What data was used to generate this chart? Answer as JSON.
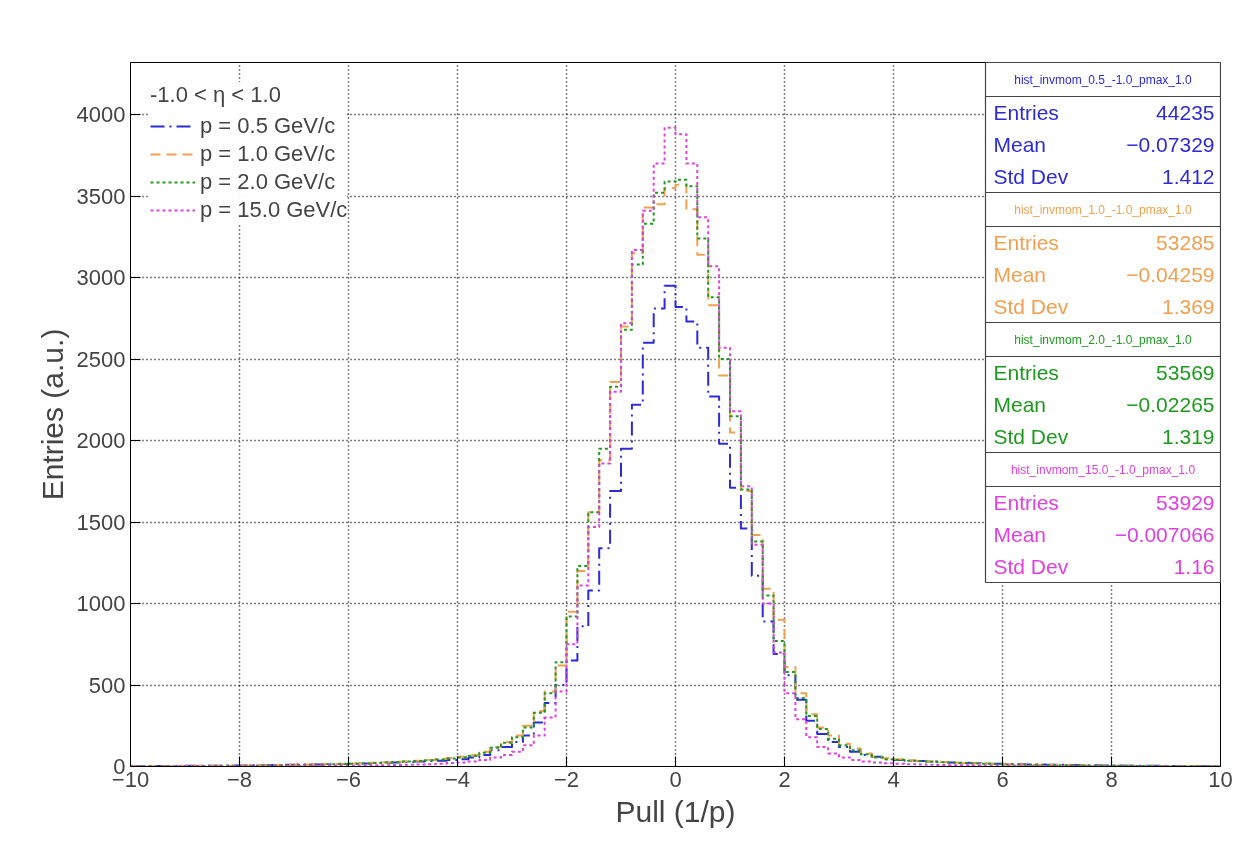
{
  "chart_data": {
    "type": "histogram",
    "xlabel": "Pull (1/p)",
    "ylabel": "Entries (a.u.)",
    "legend_title": "-1.0 < η < 1.0",
    "bins": [
      -10.0,
      -9.8,
      -9.6,
      -9.4,
      -9.2,
      -9.0,
      -8.8,
      -8.6,
      -8.4,
      -8.2,
      -8.0,
      -7.8,
      -7.6,
      -7.4,
      -7.2,
      -7.0,
      -6.8,
      -6.6,
      -6.4,
      -6.2,
      -6.0,
      -5.8,
      -5.6,
      -5.4,
      -5.2,
      -5.0,
      -4.8,
      -4.6,
      -4.4,
      -4.2,
      -4.0,
      -3.8,
      -3.6,
      -3.4,
      -3.2,
      -3.0,
      -2.8,
      -2.6,
      -2.4,
      -2.2,
      -2.0,
      -1.8,
      -1.6,
      -1.4,
      -1.2,
      -1.0,
      -0.8,
      -0.6,
      -0.4,
      -0.2,
      0.0,
      0.2,
      0.4,
      0.6,
      0.8,
      1.0,
      1.2,
      1.4,
      1.6,
      1.8,
      2.0,
      2.2,
      2.4,
      2.6,
      2.8,
      3.0,
      3.2,
      3.4,
      3.6,
      3.8,
      4.0,
      4.2,
      4.4,
      4.6,
      4.8,
      5.0,
      5.2,
      5.4,
      5.6,
      5.8,
      6.0,
      6.2,
      6.4,
      6.6,
      6.8,
      7.0,
      7.2,
      7.4,
      7.6,
      7.8,
      8.0,
      8.2,
      8.4,
      8.6,
      8.8,
      9.0,
      9.2,
      9.4,
      9.6,
      9.8,
      10.0
    ],
    "series": [
      {
        "name": "p = 0.5 GeV/c",
        "color": "#2b2bd9",
        "line_style": "dashdot",
        "values": [
          2,
          2,
          3,
          3,
          3,
          4,
          4,
          5,
          5,
          6,
          6,
          7,
          8,
          9,
          10,
          11,
          12,
          13,
          14,
          15,
          17,
          19,
          21,
          23,
          25,
          27,
          30,
          33,
          36,
          40,
          45,
          55,
          70,
          100,
          120,
          150,
          190,
          270,
          390,
          500,
          650,
          860,
          1080,
          1340,
          1690,
          1950,
          2220,
          2600,
          2810,
          2950,
          2820,
          2730,
          2570,
          2270,
          1980,
          1710,
          1460,
          1170,
          890,
          690,
          560,
          410,
          280,
          200,
          150,
          120,
          90,
          70,
          60,
          45,
          40,
          36,
          33,
          30,
          27,
          25,
          23,
          21,
          19,
          17,
          15,
          14,
          13,
          12,
          11,
          10,
          9,
          8,
          7,
          6,
          6,
          5,
          5,
          4,
          4,
          3,
          3,
          3,
          2,
          2
        ]
      },
      {
        "name": "p = 1.0 GeV/c",
        "color": "#f0a050",
        "line_style": "dashed",
        "values": [
          1,
          1,
          2,
          2,
          3,
          3,
          4,
          4,
          5,
          5,
          6,
          7,
          8,
          9,
          10,
          11,
          12,
          14,
          15,
          17,
          19,
          21,
          23,
          26,
          29,
          32,
          36,
          40,
          46,
          52,
          60,
          70,
          90,
          120,
          150,
          190,
          250,
          340,
          460,
          620,
          950,
          1200,
          1560,
          1880,
          2360,
          2700,
          3150,
          3430,
          3450,
          3550,
          3570,
          3420,
          3140,
          2830,
          2400,
          2050,
          1690,
          1420,
          1090,
          900,
          610,
          450,
          320,
          240,
          190,
          140,
          110,
          80,
          60,
          50,
          44,
          39,
          35,
          31,
          28,
          25,
          22,
          20,
          18,
          16,
          14,
          12,
          11,
          10,
          9,
          8,
          7,
          6,
          5,
          5,
          4,
          4,
          3,
          3,
          2,
          2,
          2,
          1,
          1,
          1
        ]
      },
      {
        "name": "p = 2.0 GeV/c",
        "color": "#1e9a1e",
        "line_style": "dotted",
        "values": [
          1,
          1,
          2,
          2,
          2,
          3,
          3,
          4,
          4,
          5,
          5,
          6,
          7,
          8,
          9,
          10,
          11,
          12,
          14,
          15,
          17,
          19,
          21,
          24,
          27,
          30,
          34,
          38,
          43,
          49,
          55,
          65,
          85,
          115,
          145,
          180,
          240,
          330,
          450,
          640,
          920,
          1230,
          1560,
          1950,
          2330,
          2680,
          3080,
          3330,
          3520,
          3590,
          3600,
          3560,
          3240,
          2880,
          2500,
          2150,
          1700,
          1380,
          1050,
          770,
          580,
          420,
          310,
          230,
          170,
          130,
          100,
          75,
          55,
          45,
          40,
          36,
          32,
          29,
          26,
          23,
          21,
          19,
          17,
          15,
          13,
          12,
          11,
          10,
          9,
          8,
          7,
          6,
          5,
          5,
          4,
          4,
          3,
          3,
          2,
          2,
          2,
          1,
          1,
          1
        ]
      },
      {
        "name": "p = 15.0 GeV/c",
        "color": "#e040e0",
        "line_style": "dotted",
        "values": [
          0,
          0,
          0,
          0,
          1,
          1,
          1,
          1,
          1,
          1,
          2,
          2,
          2,
          2,
          3,
          3,
          3,
          4,
          4,
          5,
          5,
          6,
          7,
          8,
          9,
          10,
          12,
          14,
          17,
          21,
          25,
          30,
          40,
          55,
          70,
          90,
          130,
          190,
          300,
          460,
          750,
          1110,
          1470,
          1860,
          2300,
          2720,
          3170,
          3410,
          3700,
          3920,
          3880,
          3700,
          3370,
          3070,
          2570,
          2180,
          1720,
          1360,
          1000,
          700,
          450,
          290,
          180,
          120,
          80,
          55,
          40,
          30,
          25,
          20,
          17,
          14,
          12,
          10,
          9,
          8,
          7,
          6,
          5,
          5,
          4,
          4,
          3,
          3,
          3,
          2,
          2,
          2,
          2,
          1,
          1,
          1,
          1,
          1,
          1,
          0,
          0,
          0,
          0,
          0
        ]
      }
    ],
    "xlim": [
      -10,
      10
    ],
    "ylim": [
      0,
      4320
    ],
    "xticks": [
      -10,
      -8,
      -6,
      -4,
      -2,
      0,
      2,
      4,
      6,
      8,
      10
    ],
    "yticks": [
      0,
      500,
      1000,
      1500,
      2000,
      2500,
      3000,
      3500,
      4000
    ],
    "grid": true,
    "legend": "top left",
    "annotations": [
      "hist_invmom_0.5_-1.0_pmax_1.0",
      "Entries 44235",
      "Mean −0.07329",
      "Std Dev 1.412",
      "hist_invmom_1.0_-1.0_pmax_1.0",
      "Entries 53285",
      "Mean −0.04259",
      "Std Dev 1.369",
      "hist_invmom_2.0_-1.0_pmax_1.0",
      "Entries 53569",
      "Mean −0.02265",
      "Std Dev 1.319",
      "hist_invmom_15.0_-1.0_pmax_1.0",
      "Entries 53929",
      "Mean −0.007066",
      "Std Dev 1.16"
    ]
  }
}
